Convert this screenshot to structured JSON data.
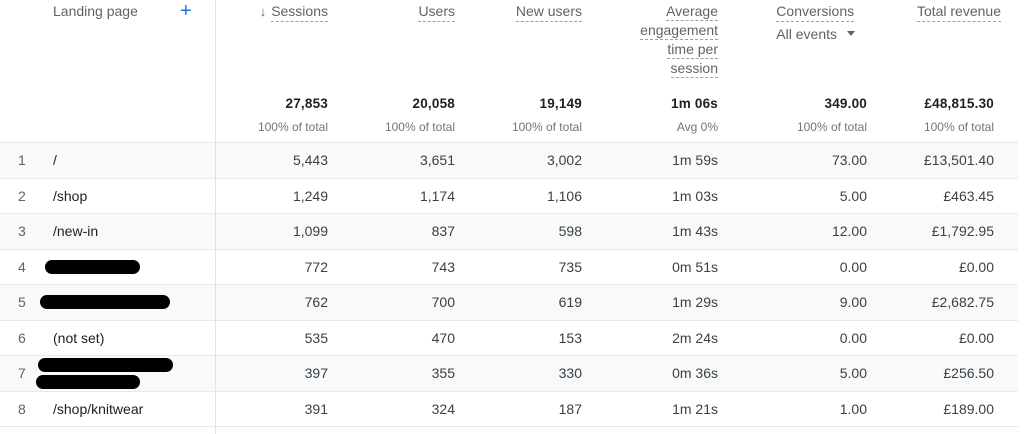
{
  "header": {
    "dimension_label": "Landing page",
    "add_dimension_label": "+",
    "columns": [
      {
        "key": "sessions",
        "label": "Sessions",
        "sorted": "desc",
        "sort_icon": "↓"
      },
      {
        "key": "users",
        "label": "Users"
      },
      {
        "key": "new_users",
        "label": "New users"
      },
      {
        "key": "avg_engagement",
        "label_lines": [
          "Average",
          "engagement",
          "time per",
          "session"
        ]
      },
      {
        "key": "conversions",
        "label": "Conversions",
        "selector": "All events"
      },
      {
        "key": "total_revenue",
        "label": "Total revenue"
      }
    ]
  },
  "totals": {
    "sessions": {
      "value": "27,853",
      "sub": "100% of total"
    },
    "users": {
      "value": "20,058",
      "sub": "100% of total"
    },
    "new_users": {
      "value": "19,149",
      "sub": "100% of total"
    },
    "avg_engagement": {
      "value": "1m 06s",
      "sub": "Avg 0%"
    },
    "conversions": {
      "value": "349.00",
      "sub": "100% of total"
    },
    "total_revenue": {
      "value": "£48,815.30",
      "sub": "100% of total"
    }
  },
  "rows": [
    {
      "n": "1",
      "page": "/",
      "redacted": false,
      "sessions": "5,443",
      "users": "3,651",
      "new_users": "3,002",
      "avg_engagement": "1m 59s",
      "conversions": "73.00",
      "total_revenue": "£13,501.40"
    },
    {
      "n": "2",
      "page": "/shop",
      "redacted": false,
      "sessions": "1,249",
      "users": "1,174",
      "new_users": "1,106",
      "avg_engagement": "1m 03s",
      "conversions": "5.00",
      "total_revenue": "£463.45"
    },
    {
      "n": "3",
      "page": "/new-in",
      "redacted": false,
      "sessions": "1,099",
      "users": "837",
      "new_users": "598",
      "avg_engagement": "1m 43s",
      "conversions": "12.00",
      "total_revenue": "£1,792.95"
    },
    {
      "n": "4",
      "page": "",
      "redacted": true,
      "sessions": "772",
      "users": "743",
      "new_users": "735",
      "avg_engagement": "0m 51s",
      "conversions": "0.00",
      "total_revenue": "£0.00"
    },
    {
      "n": "5",
      "page": "",
      "redacted": true,
      "sessions": "762",
      "users": "700",
      "new_users": "619",
      "avg_engagement": "1m 29s",
      "conversions": "9.00",
      "total_revenue": "£2,682.75"
    },
    {
      "n": "6",
      "page": "(not set)",
      "redacted": false,
      "sessions": "535",
      "users": "470",
      "new_users": "153",
      "avg_engagement": "2m 24s",
      "conversions": "0.00",
      "total_revenue": "£0.00"
    },
    {
      "n": "7",
      "page": "",
      "redacted": true,
      "sessions": "397",
      "users": "355",
      "new_users": "330",
      "avg_engagement": "0m 36s",
      "conversions": "5.00",
      "total_revenue": "£256.50"
    },
    {
      "n": "8",
      "page": "/shop/knitwear",
      "redacted": false,
      "sessions": "391",
      "users": "324",
      "new_users": "187",
      "avg_engagement": "1m 21s",
      "conversions": "1.00",
      "total_revenue": "£189.00"
    }
  ],
  "colors": {
    "accent": "#1a73e8",
    "row_shade": "#f8f9fa",
    "border": "#e6e8eb",
    "header_text": "#5f6368"
  }
}
